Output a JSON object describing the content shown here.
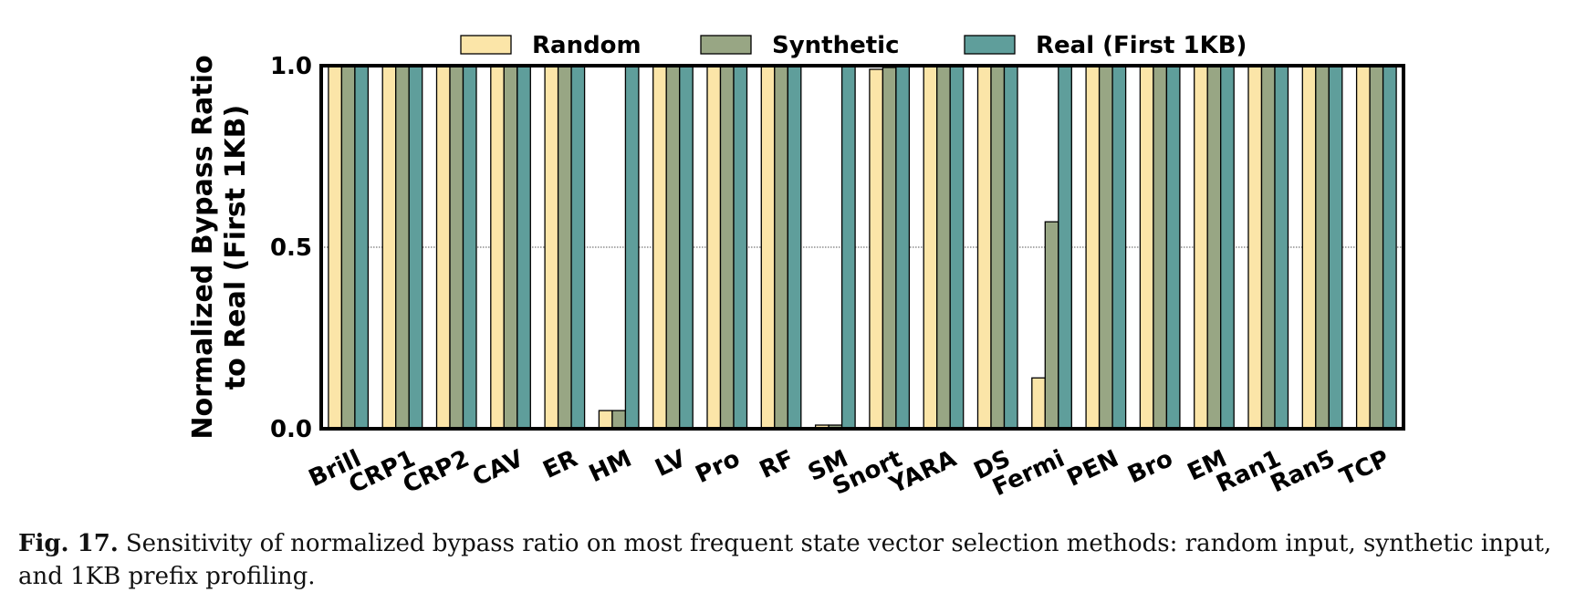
{
  "chart_data": {
    "type": "bar",
    "categories": [
      "Brill",
      "CRP1",
      "CRP2",
      "CAV",
      "ER",
      "HM",
      "LV",
      "Pro",
      "RF",
      "SM",
      "Snort",
      "YARA",
      "DS",
      "Fermi",
      "PEN",
      "Bro",
      "EM",
      "Ran1",
      "Ran5",
      "TCP"
    ],
    "series": [
      {
        "name": "Random",
        "color": "#FBE5A8",
        "values": [
          1.0,
          1.0,
          1.0,
          1.0,
          1.0,
          0.05,
          1.0,
          1.0,
          1.0,
          0.01,
          0.99,
          1.0,
          1.0,
          0.14,
          1.0,
          1.0,
          1.0,
          1.0,
          1.0,
          1.0
        ]
      },
      {
        "name": "Synthetic",
        "color": "#98A684",
        "values": [
          1.0,
          1.0,
          1.0,
          1.0,
          1.0,
          0.05,
          1.0,
          1.0,
          1.0,
          0.01,
          0.995,
          1.0,
          1.0,
          0.57,
          1.0,
          1.0,
          1.0,
          1.0,
          1.0,
          1.0
        ]
      },
      {
        "name": "Real (First 1KB)",
        "color": "#5F9E9B",
        "values": [
          1.0,
          1.0,
          1.0,
          1.0,
          1.0,
          1.0,
          1.0,
          1.0,
          1.0,
          1.0,
          1.0,
          1.0,
          1.0,
          1.0,
          1.0,
          1.0,
          1.0,
          1.0,
          1.0,
          1.0
        ]
      }
    ],
    "ylabel": [
      "Normalized Bypass Ratio",
      "to Real (First 1KB)"
    ],
    "ylim": [
      0,
      1.0
    ],
    "yticks": [
      0.0,
      0.5,
      1.0
    ],
    "ytick_labels": [
      "0.0",
      "0.5",
      "1.0"
    ],
    "grid": "horizontal dotted",
    "legend": "top-center"
  },
  "caption": {
    "label": "Fig. 17.",
    "text": "Sensitivity of normalized bypass ratio on most frequent state vector selection methods: random input, synthetic input, and 1KB prefix profiling."
  }
}
